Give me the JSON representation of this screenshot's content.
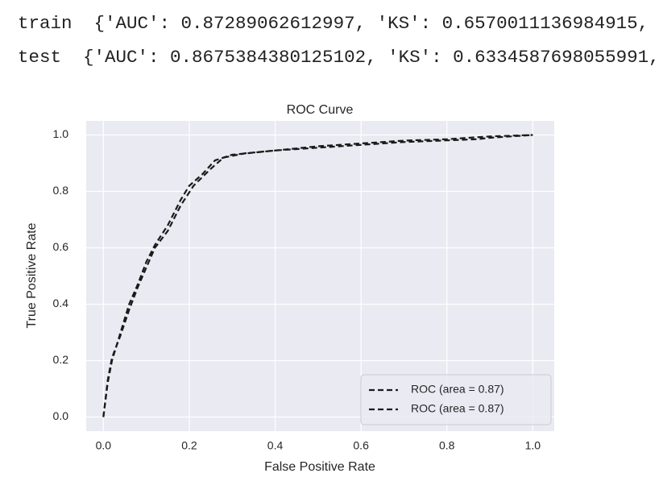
{
  "output_lines": [
    "train  {'AUC': 0.87289062612997, 'KS': 0.6570011136984915,",
    "test  {'AUC': 0.8675384380125102, 'KS': 0.6334587698055991,"
  ],
  "chart_data": {
    "type": "line",
    "title": "ROC Curve",
    "x_label": "False Positive Rate",
    "y_label": "True Positive Rate",
    "xlim": [
      -0.04,
      1.05
    ],
    "ylim": [
      -0.05,
      1.05
    ],
    "xticks": [
      {
        "value": 0,
        "label": "0.0"
      },
      0.2,
      0.4,
      0.6,
      0.8,
      {
        "value": 1,
        "label": "1.0"
      }
    ],
    "yticks": [
      {
        "value": 0,
        "label": "0.0"
      },
      0.2,
      0.4,
      0.6,
      0.8,
      {
        "value": 1,
        "label": "1.0"
      }
    ],
    "grid": true,
    "legend": "lower right",
    "series": [
      {
        "name": "ROC (area = 0.87)",
        "color": "#1a1a1a",
        "x": [
          0,
          0.01,
          0.02,
          0.04,
          0.06,
          0.08,
          0.1,
          0.12,
          0.15,
          0.18,
          0.2,
          0.23,
          0.26,
          0.3,
          0.4,
          0.5,
          0.6,
          0.7,
          0.8,
          0.9,
          1.0
        ],
        "values": [
          0,
          0.12,
          0.2,
          0.3,
          0.4,
          0.47,
          0.55,
          0.61,
          0.68,
          0.77,
          0.82,
          0.86,
          0.91,
          0.93,
          0.945,
          0.96,
          0.97,
          0.98,
          0.985,
          0.995,
          1.0
        ]
      },
      {
        "name": "ROC (area = 0.87)",
        "color": "#1a1a1a",
        "x": [
          0,
          0.01,
          0.02,
          0.04,
          0.06,
          0.08,
          0.1,
          0.12,
          0.15,
          0.18,
          0.21,
          0.25,
          0.28,
          0.33,
          0.4,
          0.5,
          0.6,
          0.7,
          0.87,
          0.9,
          1.0
        ],
        "values": [
          0,
          0.13,
          0.21,
          0.29,
          0.38,
          0.46,
          0.53,
          0.6,
          0.66,
          0.75,
          0.82,
          0.88,
          0.92,
          0.935,
          0.945,
          0.955,
          0.965,
          0.975,
          0.985,
          0.99,
          1.0
        ]
      }
    ]
  }
}
